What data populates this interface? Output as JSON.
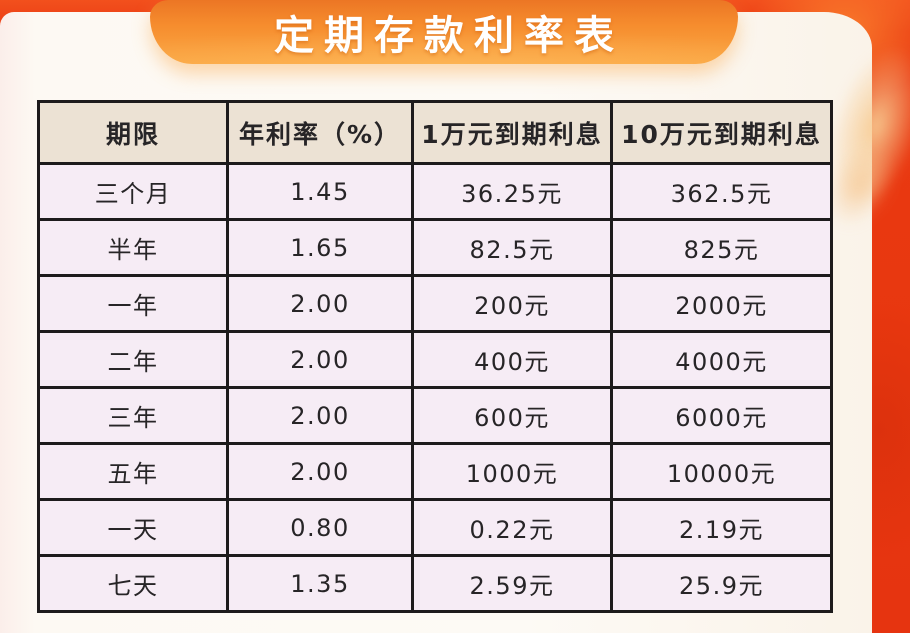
{
  "title_banner": {
    "title": "定期存款利率表"
  },
  "chart_data": {
    "type": "table",
    "title": "定期存款利率表",
    "columns": [
      "期限",
      "年利率（%）",
      "1万元到期利息",
      "10万元到期利息"
    ],
    "rows": [
      [
        "三个月",
        "1.45",
        "36.25元",
        "362.5元"
      ],
      [
        "半年",
        "1.65",
        "82.5元",
        "825元"
      ],
      [
        "一年",
        "2.00",
        "200元",
        "2000元"
      ],
      [
        "二年",
        "2.00",
        "400元",
        "4000元"
      ],
      [
        "三年",
        "2.00",
        "600元",
        "6000元"
      ],
      [
        "五年",
        "2.00",
        "1000元",
        "10000元"
      ],
      [
        "一天",
        "0.80",
        "0.22元",
        "2.19元"
      ],
      [
        "七天",
        "1.35",
        "2.59元",
        "25.9元"
      ]
    ]
  },
  "colors": {
    "background_red": "#e8370f",
    "banner_orange_top": "#ec7624",
    "banner_orange_bottom": "#fba845",
    "card_white": "#fdfaf5",
    "header_cell_bg": "#ece2d4",
    "data_cell_bg": "#f6ecf5",
    "table_border": "#1d1b1c",
    "swoosh_highlight": "#f7cb92"
  }
}
